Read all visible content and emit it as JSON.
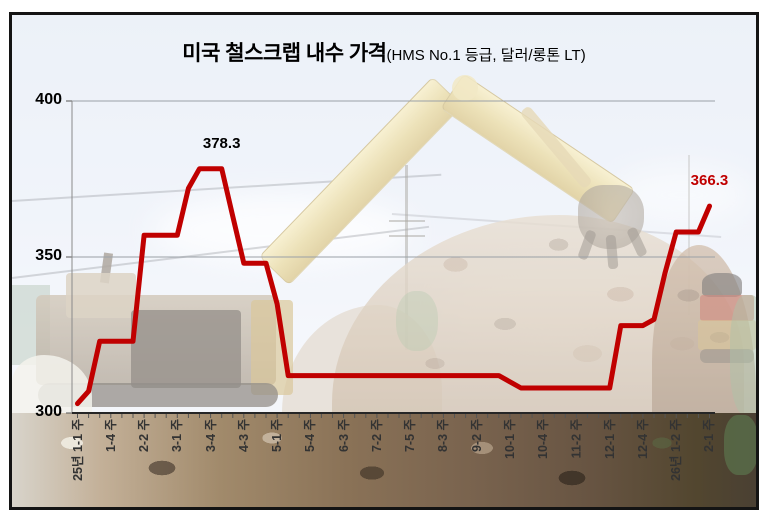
{
  "figure": {
    "title_main": "미국 철스크랩 내수 가격",
    "title_sub": "(HMS No.1 등급, 달러/롱톤 LT)"
  },
  "chart_data": {
    "type": "line",
    "title": "미국 철스크랩 내수 가격(HMS No.1 등급, 달러/롱톤 LT)",
    "x_tick_labels": [
      "25년 1-1 주",
      "1-4 주",
      "2-2 주",
      "3-1 주",
      "3-4 주",
      "4-3 주",
      "5-1 주",
      "5-4 주",
      "6-3 주",
      "7-2 주",
      "7-5 주",
      "8-3 주",
      "9-2 주",
      "10-1 주",
      "10-4 주",
      "11-2 주",
      "12-1 주",
      "12-4 주",
      "26년 1-2 주",
      "2-1 주"
    ],
    "label_every_n_points": 3,
    "n_points": 58,
    "y_ticks": [
      300,
      350,
      400
    ],
    "ylim": [
      300,
      400
    ],
    "grid": true,
    "legend": "none",
    "series": [
      {
        "name": "미국 철스크랩 내수 가격",
        "color": "#c00000",
        "values": [
          303,
          307,
          323,
          323,
          323,
          323,
          357,
          357,
          357,
          357,
          372,
          378.3,
          378.3,
          378.3,
          363,
          348,
          348,
          348,
          335,
          312,
          312,
          312,
          312,
          312,
          312,
          312,
          312,
          312,
          312,
          312,
          312,
          312,
          312,
          312,
          312,
          312,
          312,
          312,
          312,
          310,
          308,
          308,
          308,
          308,
          308,
          308,
          308,
          308,
          308,
          328,
          328,
          328,
          330,
          345,
          358,
          358,
          358,
          366.3
        ]
      }
    ],
    "annotations": [
      {
        "text": "378.3",
        "point_index": 14,
        "color": "#000000"
      },
      {
        "text": "366.3",
        "point_index": 58,
        "color": "#c00000"
      }
    ]
  },
  "colors": {
    "line": "#c00000",
    "gridline": "#9aa0a6",
    "axis": "#262626",
    "x_label": "#333333",
    "y_label": "#000000"
  }
}
